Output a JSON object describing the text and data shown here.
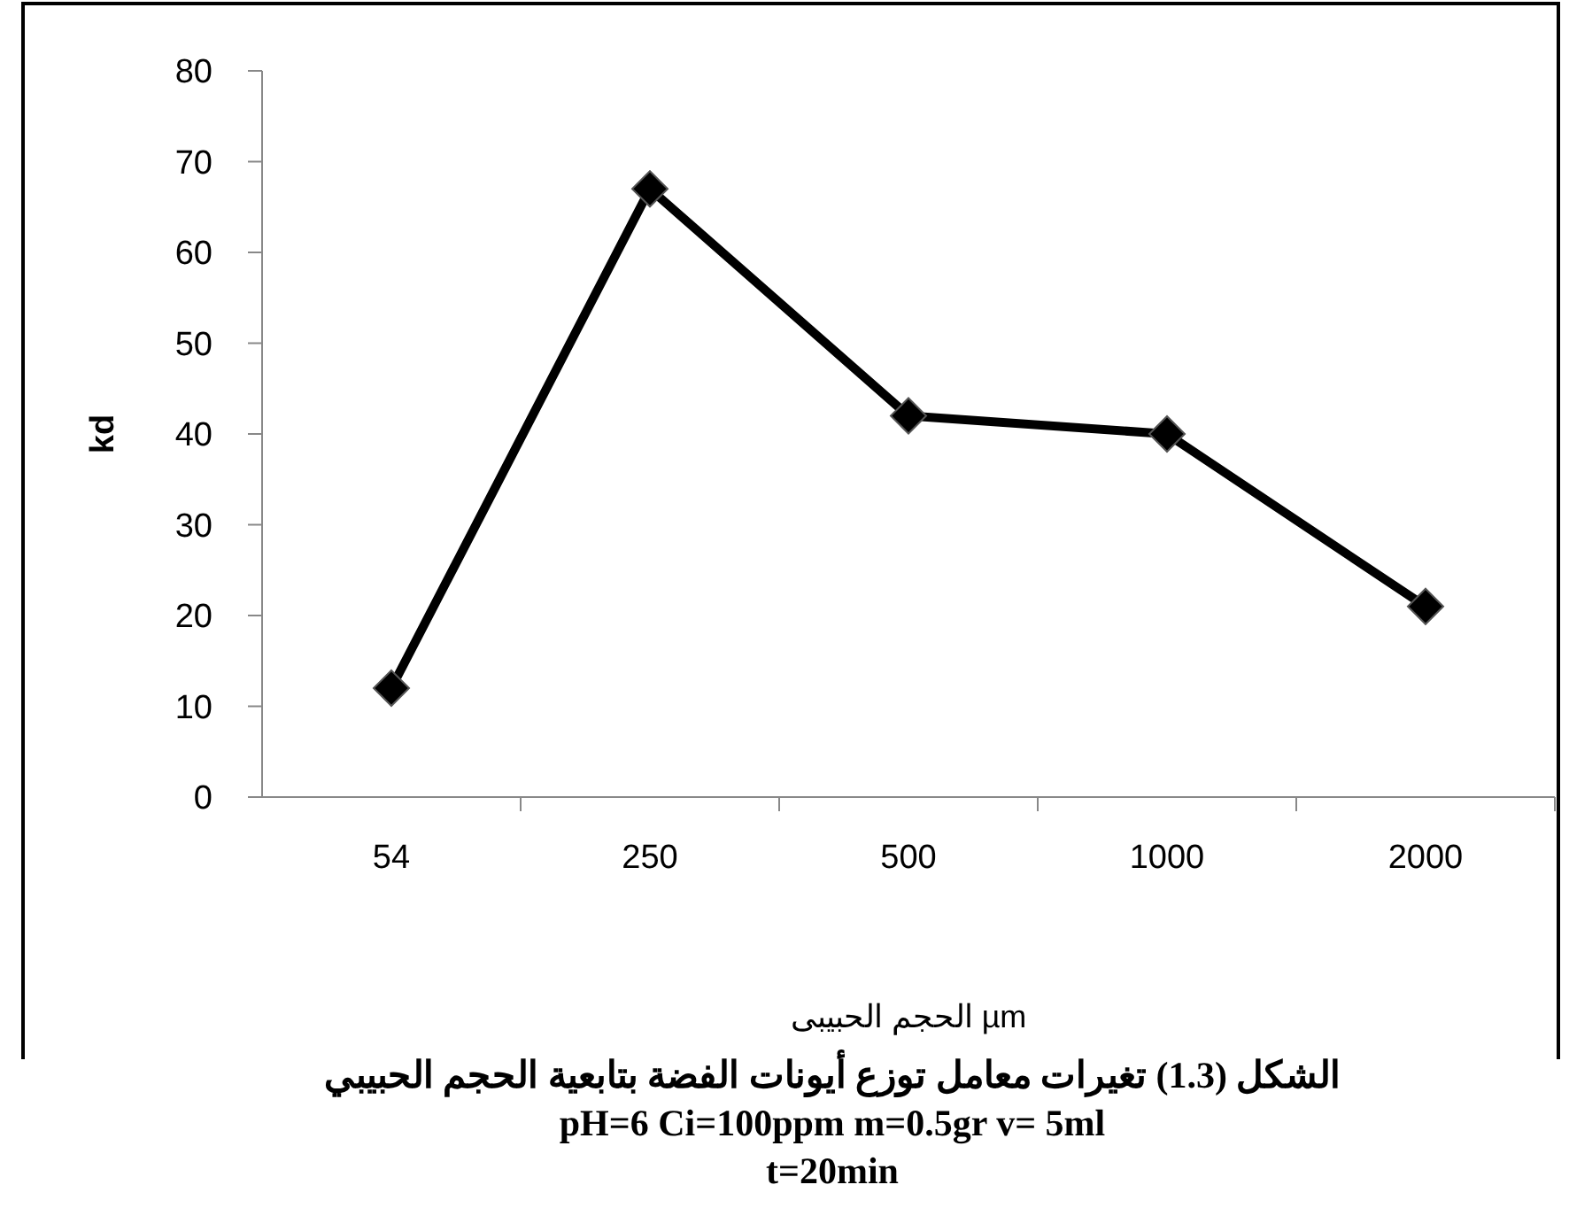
{
  "chart_data": {
    "type": "line",
    "xlabel": "الحجم الحبيبى µm",
    "ylabel": "kd",
    "categories": [
      "54",
      "250",
      "500",
      "1000",
      "2000"
    ],
    "series": [
      {
        "color": "#000000",
        "values": [
          12,
          67,
          42,
          40,
          21
        ]
      }
    ],
    "ylim": [
      0,
      80
    ],
    "yticks": [
      0,
      10,
      20,
      30,
      40,
      50,
      60,
      70,
      80
    ],
    "marker": "diamond",
    "line_style": "solid",
    "annotations": [
      "الشكل (1.3) تغيرات معامل توزع  أيونات الفضة بتابعية الحجم الحبيبي",
      "pH=6  Ci=100ppm  m=0.5gr  v= 5ml",
      "t=20min"
    ]
  }
}
